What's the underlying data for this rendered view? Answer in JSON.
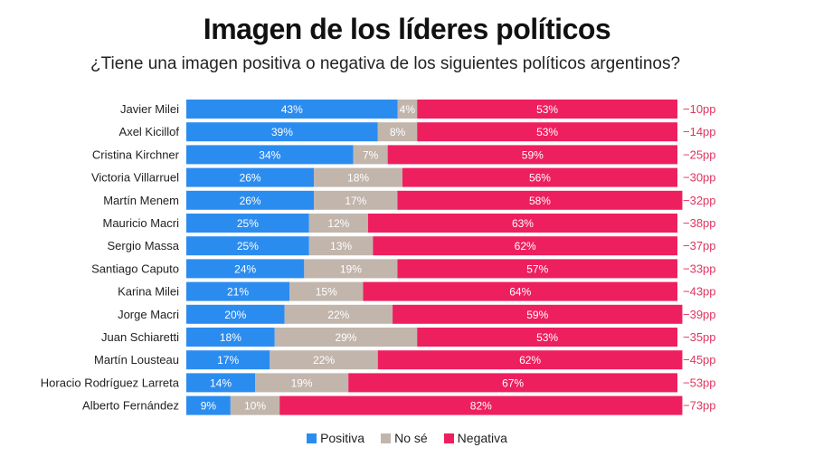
{
  "chart_data": {
    "type": "bar",
    "orientation": "horizontal",
    "stacked": true,
    "title": "Imagen de los líderes políticos",
    "subtitle": "¿Tiene una imagen positiva o negativa de los siguientes políticos argentinos?",
    "categories": [
      "Javier Milei",
      "Axel Kicillof",
      "Cristina Kirchner",
      "Victoria Villarruel",
      "Martín Menem",
      "Mauricio Macri",
      "Sergio Massa",
      "Santiago Caputo",
      "Karina Milei",
      "Jorge Macri",
      "Juan Schiaretti",
      "Martín Lousteau",
      "Horacio Rodríguez Larreta",
      "Alberto Fernández"
    ],
    "series": [
      {
        "name": "Positiva",
        "color": "#2b8cf0",
        "values": [
          43,
          39,
          34,
          26,
          26,
          25,
          25,
          24,
          21,
          20,
          18,
          17,
          14,
          9
        ]
      },
      {
        "name": "No sé",
        "color": "#c2b5ac",
        "values": [
          4,
          8,
          7,
          18,
          17,
          12,
          13,
          19,
          15,
          22,
          29,
          22,
          19,
          10
        ]
      },
      {
        "name": "Negativa",
        "color": "#ee1f5f",
        "values": [
          53,
          53,
          59,
          56,
          58,
          63,
          62,
          57,
          64,
          59,
          53,
          62,
          67,
          82
        ]
      }
    ],
    "net_labels": [
      "−10pp",
      "−14pp",
      "−25pp",
      "−30pp",
      "−32pp",
      "−38pp",
      "−37pp",
      "−33pp",
      "−43pp",
      "−39pp",
      "−35pp",
      "−45pp",
      "−53pp",
      "−73pp"
    ],
    "net_color": "#e0345f",
    "xlim": [
      0,
      100
    ],
    "legend_position": "bottom-center"
  }
}
